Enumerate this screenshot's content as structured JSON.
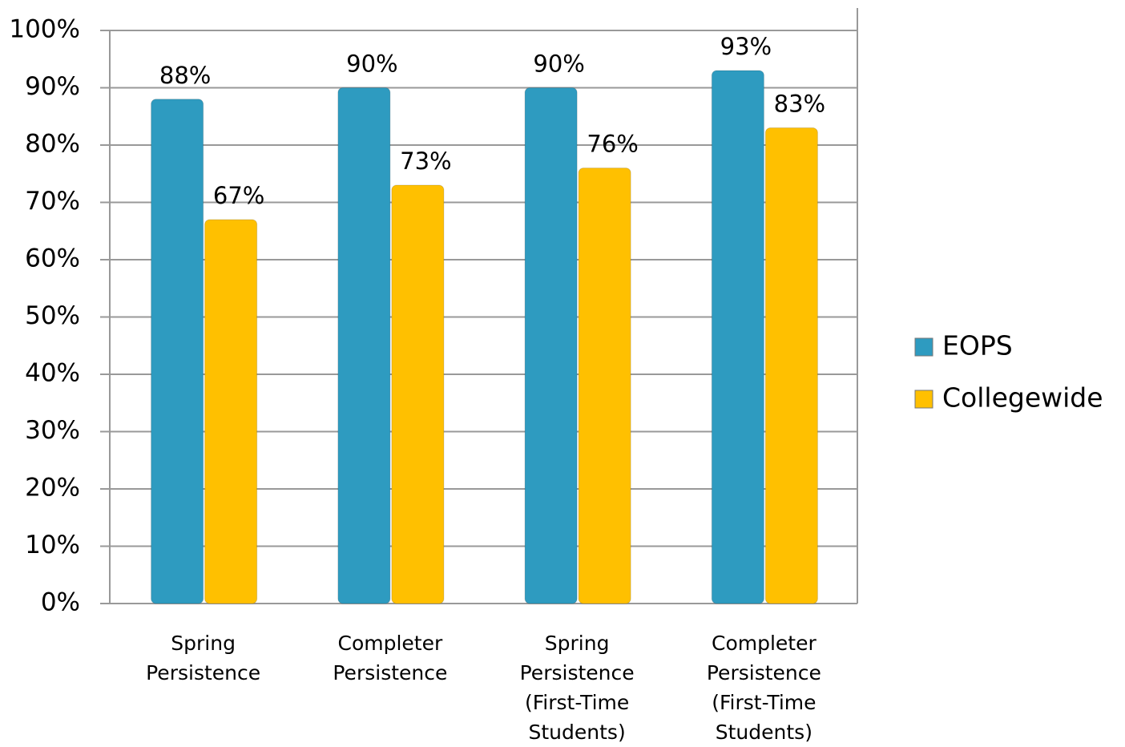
{
  "chart_data": {
    "type": "bar",
    "categories": [
      "Spring Persistence",
      "Completer Persistence",
      "Spring Persistence (First-Time Students)",
      "Completer Persistence (First-Time Students)"
    ],
    "series": [
      {
        "name": "EOPS",
        "color": "#2e9bc0",
        "values": [
          88,
          90,
          90,
          93
        ],
        "value_labels": [
          "88%",
          "90%",
          "90%",
          "93%"
        ]
      },
      {
        "name": "Collegewide",
        "color": "#ffc000",
        "values": [
          67,
          73,
          76,
          83
        ],
        "value_labels": [
          "67%",
          "73%",
          "76%",
          "83%"
        ]
      }
    ],
    "ylim": [
      0,
      100
    ],
    "yticks": [
      {
        "value": 0,
        "label": "0%"
      },
      {
        "value": 10,
        "label": "10%"
      },
      {
        "value": 20,
        "label": "20%"
      },
      {
        "value": 30,
        "label": "30%"
      },
      {
        "value": 40,
        "label": "40%"
      },
      {
        "value": 50,
        "label": "50%"
      },
      {
        "value": 60,
        "label": "60%"
      },
      {
        "value": 70,
        "label": "70%"
      },
      {
        "value": 80,
        "label": "80%"
      },
      {
        "value": 90,
        "label": "90%"
      },
      {
        "value": 100,
        "label": "100%"
      }
    ],
    "grid": true,
    "legend": "right"
  }
}
